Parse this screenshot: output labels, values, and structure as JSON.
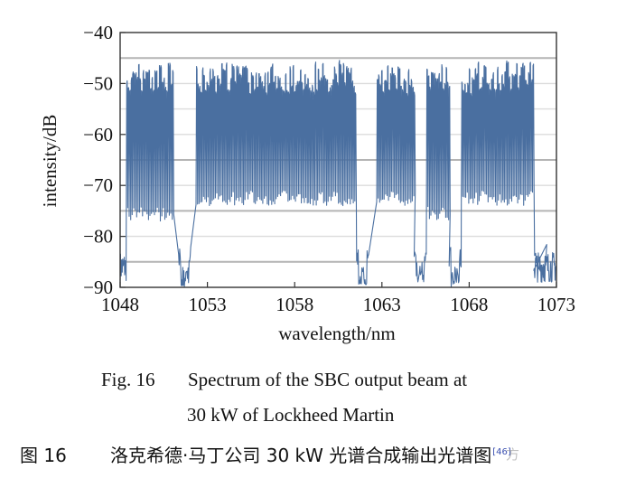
{
  "chart_data": {
    "type": "line",
    "xlabel": "wavelength/nm",
    "ylabel": "intensity/dB",
    "xlim": [
      1048,
      1073
    ],
    "ylim": [
      -90,
      -40
    ],
    "x_ticks": [
      "1048",
      "1053",
      "1058",
      "1063",
      "1068",
      "1073"
    ],
    "y_ticks": [
      "−40",
      "−50",
      "−60",
      "−70",
      "−80",
      "−90"
    ],
    "grid": true,
    "series": [
      {
        "color": "#4a6fa0",
        "bands": [
          {
            "start": 1048.35,
            "end": 1051.05,
            "floor": -74
          },
          {
            "start": 1052.35,
            "end": 1061.45,
            "floor": -71
          },
          {
            "start": 1062.7,
            "end": 1064.9,
            "floor": -71
          },
          {
            "start": 1065.55,
            "end": 1066.9,
            "floor": -74
          },
          {
            "start": 1067.55,
            "end": 1071.7,
            "floor": -71
          }
        ],
        "gaps": [
          {
            "center": 1051.7,
            "floor": -86
          },
          {
            "center": 1061.9,
            "floor": -86
          },
          {
            "center": 1065.2,
            "floor": -85
          },
          {
            "center": 1067.2,
            "floor": -86
          },
          {
            "center": 1072.1,
            "floor": -85
          }
        ],
        "edges": [
          {
            "start": 1048.0,
            "end": 1048.35,
            "level": -86
          },
          {
            "start": 1071.7,
            "end": 1073.0,
            "level": -86
          }
        ],
        "peak_level": -46
      }
    ],
    "reference_lines": [
      -45,
      -65,
      -75,
      -85
    ]
  },
  "captions": {
    "en_number": "Fig. 16",
    "en_line1": "Spectrum of the SBC output beam at",
    "en_line2": "30 kW of Lockheed Martin",
    "cn_number": "图 16",
    "cn_text": "洛克希德·马丁公司 30 kW 光谱合成输出光谱图",
    "cn_ref": "[46]",
    "watermark": "方"
  }
}
